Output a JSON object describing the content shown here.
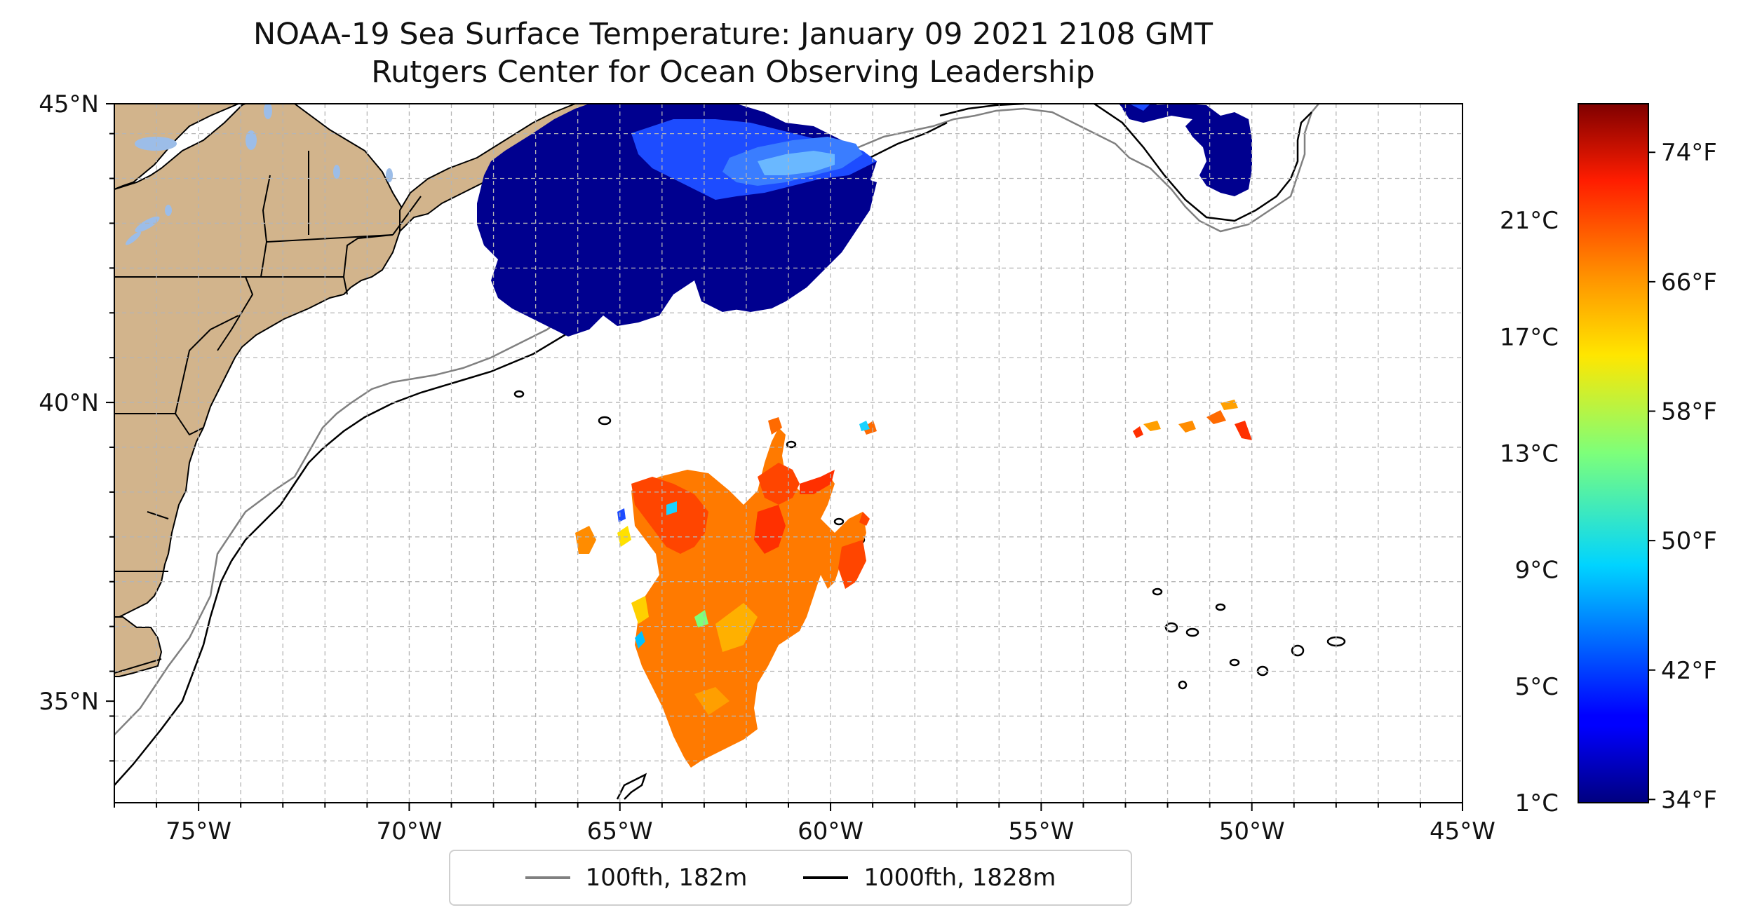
{
  "title": {
    "line1": "NOAA-19 Sea Surface Temperature: January 09 2021 2108 GMT",
    "line2": "Rutgers Center for Ocean Observing Leadership"
  },
  "map": {
    "lon_range": [
      -77,
      -45
    ],
    "lat_range": [
      33.3,
      45
    ],
    "lon_ticks": [
      {
        "value": -75,
        "label": "75°W"
      },
      {
        "value": -70,
        "label": "70°W"
      },
      {
        "value": -65,
        "label": "65°W"
      },
      {
        "value": -60,
        "label": "60°W"
      },
      {
        "value": -55,
        "label": "55°W"
      },
      {
        "value": -50,
        "label": "50°W"
      },
      {
        "value": -45,
        "label": "45°W"
      }
    ],
    "lat_ticks": [
      {
        "value": 45,
        "label": "45°N"
      },
      {
        "value": 40,
        "label": "40°N"
      },
      {
        "value": 35,
        "label": "35°N"
      }
    ],
    "grid": true,
    "land_color": "#d2b48c",
    "lake_color": "#9cbde8"
  },
  "legend": {
    "items": [
      {
        "label": "100fth, 182m",
        "color": "#808080"
      },
      {
        "label": "1000fth, 1828m",
        "color": "#000000"
      }
    ],
    "placement": "bottom-center"
  },
  "colorbar": {
    "colormap": "jet",
    "celsius_ticks": [
      {
        "value": 1,
        "label": "1°C"
      },
      {
        "value": 5,
        "label": "5°C"
      },
      {
        "value": 9,
        "label": "9°C"
      },
      {
        "value": 13,
        "label": "13°C"
      },
      {
        "value": 17,
        "label": "17°C"
      },
      {
        "value": 21,
        "label": "21°C"
      }
    ],
    "fahrenheit_ticks": [
      {
        "value": 34,
        "label": "34°F"
      },
      {
        "value": 42,
        "label": "42°F"
      },
      {
        "value": 50,
        "label": "50°F"
      },
      {
        "value": 58,
        "label": "58°F"
      },
      {
        "value": 66,
        "label": "66°F"
      },
      {
        "value": 74,
        "label": "74°F"
      }
    ],
    "range_f": [
      33.8,
      77
    ]
  }
}
